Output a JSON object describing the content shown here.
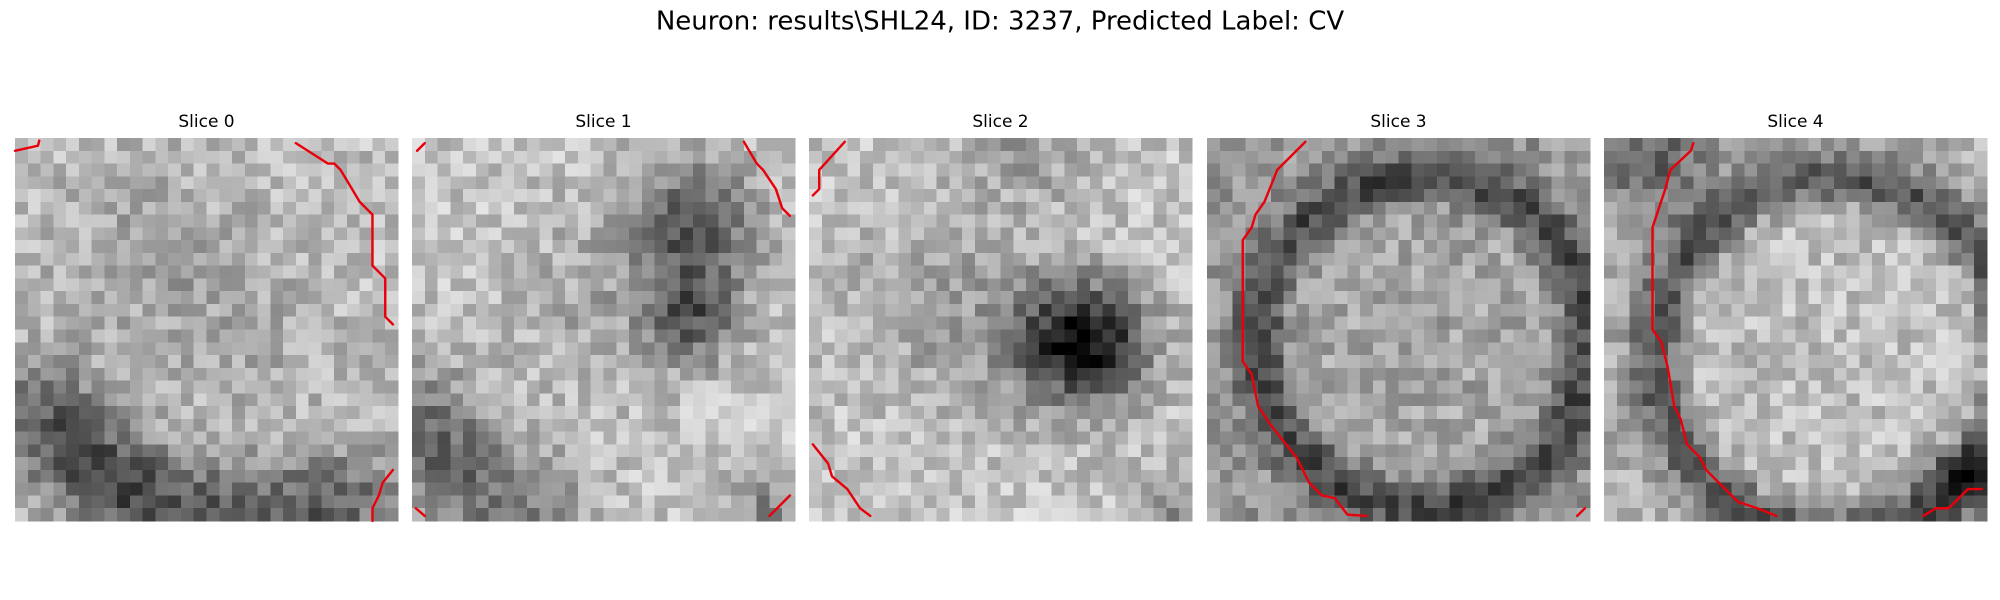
{
  "figure": {
    "title": "Neuron: results\\SHL24, ID: 3237, Predicted Label: CV",
    "panels": [
      {
        "title": "Slice 0"
      },
      {
        "title": "Slice 1"
      },
      {
        "title": "Slice 2"
      },
      {
        "title": "Slice 3"
      },
      {
        "title": "Slice 4"
      }
    ]
  }
}
